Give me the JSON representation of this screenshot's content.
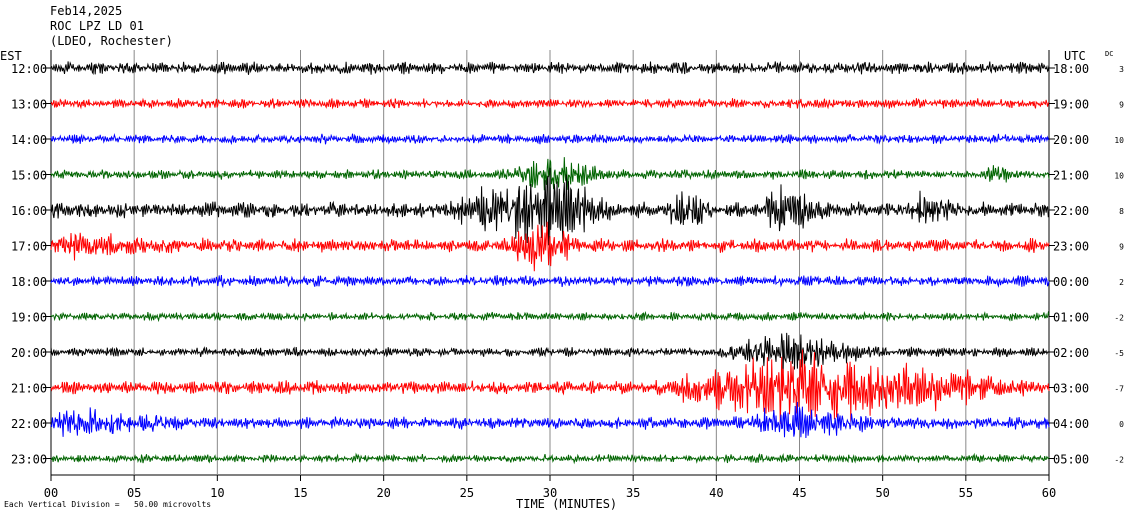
{
  "header": {
    "date": "Feb14,2025",
    "station": "ROC LPZ LD 01",
    "network": "(LDEO, Rochester)"
  },
  "labels": {
    "left_zone": "EST",
    "right_zone": "UTC",
    "dc_column": "DC",
    "footer": "Each Vertical Division =   50.00 microvolts"
  },
  "chart_data": {
    "type": "line",
    "title": "",
    "xlabel": "TIME (MINUTES)",
    "ylabel": "",
    "xlim": [
      0,
      60
    ],
    "x_ticks": [
      "00",
      "05",
      "10",
      "15",
      "20",
      "25",
      "30",
      "35",
      "40",
      "45",
      "50",
      "55",
      "60"
    ],
    "grid": true,
    "colors": [
      "#000000",
      "#ff0000",
      "#0000ff",
      "#006400"
    ],
    "rows": [
      {
        "est": "12:00",
        "utc": "18:00",
        "dc": "3",
        "color": "#000000",
        "noise": 0.45
      },
      {
        "est": "13:00",
        "utc": "19:00",
        "dc": "9",
        "color": "#ff0000",
        "noise": 0.35
      },
      {
        "est": "14:00",
        "utc": "20:00",
        "dc": "10",
        "color": "#0000ff",
        "noise": 0.35
      },
      {
        "est": "15:00",
        "utc": "21:00",
        "dc": "10",
        "color": "#006400",
        "noise": 0.35
      },
      {
        "est": "16:00",
        "utc": "22:00",
        "dc": "8",
        "color": "#000000",
        "noise": 0.6
      },
      {
        "est": "17:00",
        "utc": "23:00",
        "dc": "9",
        "color": "#ff0000",
        "noise": 0.5
      },
      {
        "est": "18:00",
        "utc": "00:00",
        "dc": "2",
        "color": "#0000ff",
        "noise": 0.4
      },
      {
        "est": "19:00",
        "utc": "01:00",
        "dc": "-2",
        "color": "#006400",
        "noise": 0.3
      },
      {
        "est": "20:00",
        "utc": "02:00",
        "dc": "-5",
        "color": "#000000",
        "noise": 0.35
      },
      {
        "est": "21:00",
        "utc": "03:00",
        "dc": "-7",
        "color": "#ff0000",
        "noise": 0.5
      },
      {
        "est": "22:00",
        "utc": "04:00",
        "dc": "0",
        "color": "#0000ff",
        "noise": 0.45
      },
      {
        "est": "23:00",
        "utc": "05:00",
        "dc": "-2",
        "color": "#006400",
        "noise": 0.3
      }
    ],
    "events": [
      {
        "row": 4,
        "start": 23.5,
        "end": 34,
        "peak": 30,
        "amp": 4.0
      },
      {
        "row": 4,
        "start": 37,
        "end": 40,
        "peak": 38,
        "amp": 2.2
      },
      {
        "row": 4,
        "start": 42.5,
        "end": 46.5,
        "peak": 44,
        "amp": 2.4
      },
      {
        "row": 4,
        "start": 51,
        "end": 54.5,
        "peak": 52.5,
        "amp": 1.2
      },
      {
        "row": 3,
        "start": 27,
        "end": 34,
        "peak": 30,
        "amp": 1.6
      },
      {
        "row": 5,
        "start": 27,
        "end": 32,
        "peak": 29,
        "amp": 2.4
      },
      {
        "row": 5,
        "start": 0,
        "end": 10,
        "peak": 1,
        "amp": 0.8
      },
      {
        "row": 3,
        "start": 56,
        "end": 58,
        "peak": 57,
        "amp": 1.0
      },
      {
        "row": 9,
        "start": 36,
        "end": 60,
        "peak": 45,
        "amp": 3.6
      },
      {
        "row": 8,
        "start": 40,
        "end": 50,
        "peak": 44.5,
        "amp": 2.0
      },
      {
        "row": 10,
        "start": 0,
        "end": 10,
        "peak": 1,
        "amp": 1.1
      },
      {
        "row": 10,
        "start": 41,
        "end": 50,
        "peak": 44.5,
        "amp": 1.6
      }
    ]
  }
}
